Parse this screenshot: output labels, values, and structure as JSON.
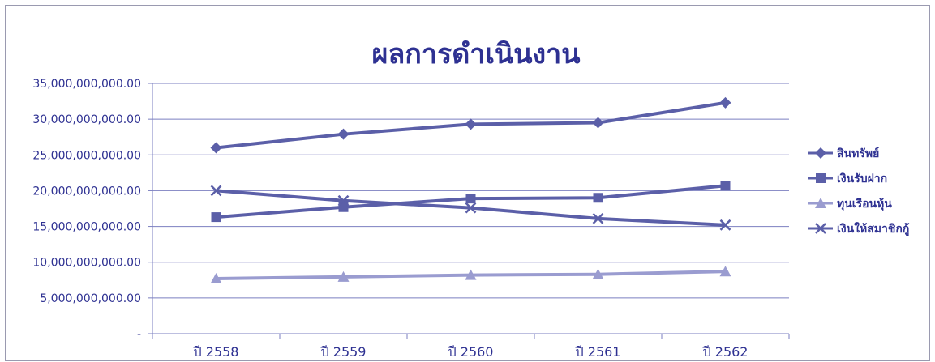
{
  "chart_data": {
    "type": "line",
    "title": "ผลการดำเนินงาน",
    "xlabel": "",
    "ylabel": "",
    "categories": [
      "ปี 2558",
      "ปี 2559",
      "ปี 2560",
      "ปี 2561",
      "ปี 2562"
    ],
    "ylim": [
      0,
      35000000000
    ],
    "y_ticks": [
      0,
      5000000000,
      10000000000,
      15000000000,
      20000000000,
      25000000000,
      30000000000,
      35000000000
    ],
    "y_tick_labels": [
      "-",
      "5,000,000,000.00",
      "10,000,000,000.00",
      "15,000,000,000.00",
      "20,000,000,000.00",
      "25,000,000,000.00",
      "30,000,000,000.00",
      "35,000,000,000.00"
    ],
    "grid": true,
    "legend_position": "right",
    "series": [
      {
        "name": "สินทรัพย์",
        "marker": "diamond",
        "color": "#5b5fa8",
        "values": [
          26000000000,
          27900000000,
          29300000000,
          29500000000,
          32300000000
        ]
      },
      {
        "name": "เงินรับฝาก",
        "marker": "square",
        "color": "#5b5fa8",
        "values": [
          16300000000,
          17700000000,
          18900000000,
          19000000000,
          20700000000
        ]
      },
      {
        "name": "ทุนเรือนหุ้น",
        "marker": "triangle",
        "color": "#9a9cd0",
        "values": [
          7700000000,
          7950000000,
          8200000000,
          8300000000,
          8700000000
        ]
      },
      {
        "name": "เงินให้สมาชิกกู้",
        "marker": "x",
        "color": "#5b5fa8",
        "values": [
          20000000000,
          18600000000,
          17600000000,
          16100000000,
          15200000000
        ]
      }
    ]
  }
}
